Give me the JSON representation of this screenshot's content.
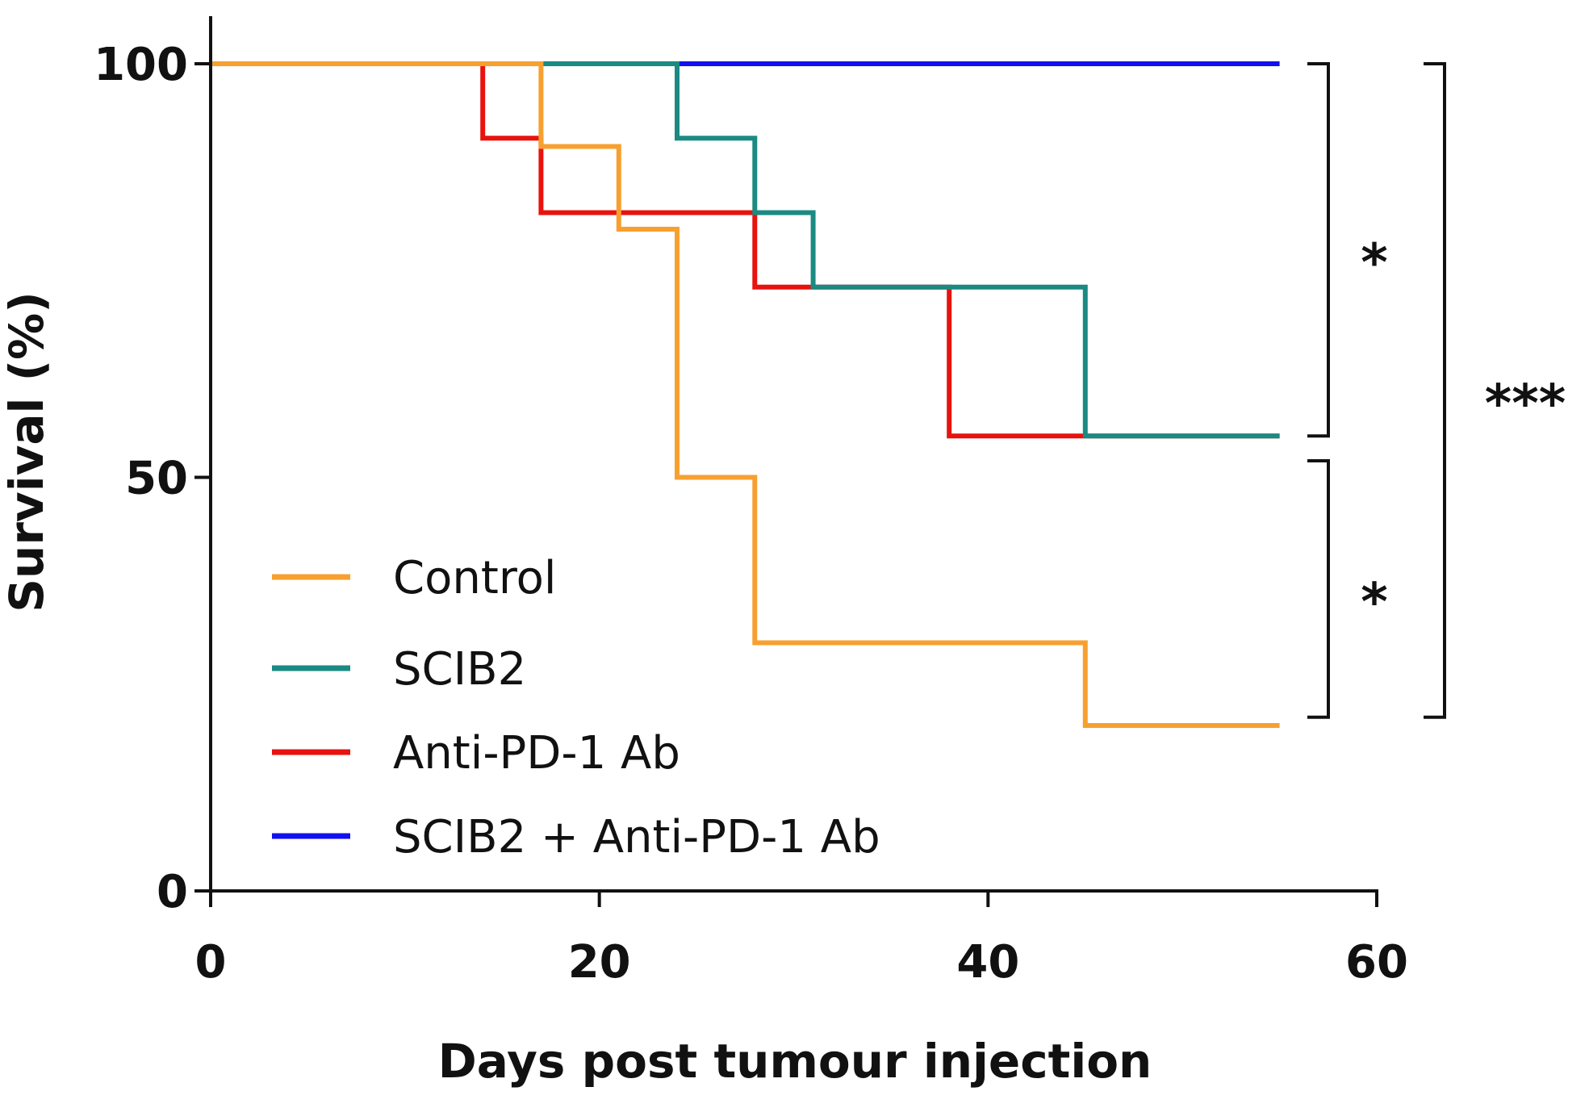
{
  "chart_data": {
    "type": "line",
    "step": true,
    "title": "",
    "xlabel": "Days post tumour injection",
    "ylabel": "Survival (%)",
    "xlim": [
      0,
      60
    ],
    "ylim": [
      0,
      100
    ],
    "xticks": [
      0,
      20,
      40,
      60
    ],
    "yticks": [
      0,
      50,
      100
    ],
    "legend_position": "lower-left",
    "series": [
      {
        "name": "Control",
        "color": "#F7A030",
        "x": [
          0,
          17,
          17,
          21,
          21,
          24,
          24,
          28,
          28,
          45,
          45,
          55
        ],
        "y": [
          100,
          100,
          90,
          90,
          80,
          80,
          50,
          50,
          30,
          30,
          20,
          20
        ]
      },
      {
        "name": "SCIB2",
        "color": "#1A8A82",
        "x": [
          0,
          24,
          24,
          28,
          28,
          31,
          31,
          45,
          45,
          55
        ],
        "y": [
          100,
          100,
          91,
          91,
          82,
          82,
          73,
          73,
          55,
          55
        ]
      },
      {
        "name": "Anti-PD-1 Ab",
        "color": "#E8120E",
        "x": [
          0,
          14,
          14,
          17,
          17,
          28,
          28,
          38,
          38,
          55
        ],
        "y": [
          100,
          100,
          91,
          91,
          82,
          82,
          73,
          73,
          55,
          55
        ]
      },
      {
        "name": "SCIB2 + Anti-PD-1 Ab",
        "color": "#1010F0",
        "x": [
          0,
          55
        ],
        "y": [
          100,
          100
        ]
      }
    ],
    "annotations": [
      {
        "label": "*",
        "y_range": [
          55,
          100
        ]
      },
      {
        "label": "*",
        "y_range": [
          21,
          52
        ]
      },
      {
        "label": "***",
        "y_range": [
          21,
          100
        ]
      }
    ]
  }
}
